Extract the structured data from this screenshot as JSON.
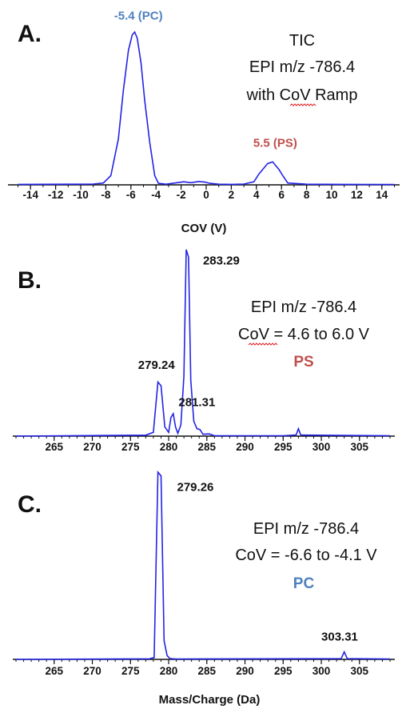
{
  "colors": {
    "trace": "#2323e6",
    "pc": "#4f81bd",
    "ps": "#c0504d",
    "axis": "#111111",
    "squiggle": "#e02020"
  },
  "chart_data": [
    {
      "panel": "A.",
      "type": "line",
      "xlabel": "COV (V)",
      "xlim": [
        -15,
        15
      ],
      "xticks": [
        "-14",
        "-12",
        "-10",
        "-8",
        "-6",
        "-4",
        "-2",
        "0",
        "2",
        "4",
        "6",
        "8",
        "10",
        "12",
        "14"
      ],
      "ylim": [
        0,
        1
      ],
      "info_lines": [
        "TIC",
        "EPI m/z -786.4",
        "with CoV Ramp"
      ],
      "series": [
        {
          "x": [
            -15,
            -11,
            -9,
            -8.2,
            -7.6,
            -7.0,
            -6.6,
            -6.2,
            -5.9,
            -5.7,
            -5.5,
            -5.2,
            -4.9,
            -4.5,
            -4.1,
            -3.8,
            -3.2,
            -2.5,
            -1.8,
            -1.2,
            -0.6,
            -0.1,
            0.3,
            1,
            2,
            3,
            3.8,
            4.2,
            4.6,
            4.9,
            5.1,
            5.3,
            5.5,
            5.8,
            6.1,
            6.5,
            8,
            11,
            15
          ],
          "y": [
            0.003,
            0.004,
            0.005,
            0.012,
            0.06,
            0.3,
            0.62,
            0.88,
            0.98,
            1.0,
            0.96,
            0.8,
            0.55,
            0.28,
            0.06,
            0.01,
            0.004,
            0.012,
            0.02,
            0.014,
            0.022,
            0.018,
            0.01,
            0.004,
            0.003,
            0.005,
            0.02,
            0.07,
            0.11,
            0.14,
            0.145,
            0.15,
            0.13,
            0.1,
            0.06,
            0.012,
            0.004,
            0.003,
            0.002
          ]
        }
      ],
      "annotations": [
        {
          "text": "-5.4 (PC)",
          "x": -5.4,
          "y": 1.08,
          "color": "pc"
        },
        {
          "text": "5.5 (PS)",
          "x": 5.5,
          "y": 0.25,
          "color": "ps"
        }
      ]
    },
    {
      "panel": "B.",
      "type": "line",
      "xlabel": "",
      "xlim": [
        260,
        309
      ],
      "xticks": [
        "265",
        "270",
        "275",
        "280",
        "285",
        "290",
        "295",
        "300",
        "305"
      ],
      "ylim": [
        0,
        1
      ],
      "info_lines": [
        "EPI m/z -786.4",
        "CoV = 4.6 to 6.0 V"
      ],
      "info_tag": "PS",
      "series": [
        {
          "x": [
            260,
            277.0,
            278.0,
            278.6,
            279.0,
            279.5,
            280.0,
            280.3,
            280.6,
            280.9,
            281.2,
            281.6,
            282.0,
            282.3,
            282.6,
            282.9,
            283.3,
            283.7,
            284.1,
            284.5,
            285.3,
            286,
            295,
            296.7,
            297.0,
            297.3,
            309
          ],
          "y": [
            0,
            0.005,
            0.02,
            0.29,
            0.27,
            0.05,
            0.02,
            0.1,
            0.12,
            0.05,
            0.015,
            0.06,
            0.32,
            1.0,
            0.96,
            0.3,
            0.08,
            0.04,
            0.035,
            0.01,
            0.012,
            0.002,
            0.002,
            0.006,
            0.04,
            0.006,
            0.002
          ]
        }
      ],
      "annotations": [
        {
          "text": "279.24",
          "x": 278.4,
          "y": 0.36,
          "color": "axis"
        },
        {
          "text": "281.31",
          "x": 283.7,
          "y": 0.16,
          "color": "axis"
        },
        {
          "text": "283.29",
          "x": 286.9,
          "y": 0.92,
          "color": "axis"
        }
      ]
    },
    {
      "panel": "C.",
      "type": "line",
      "xlabel": "Mass/Charge (Da)",
      "xlim": [
        260,
        309
      ],
      "xticks": [
        "265",
        "270",
        "275",
        "280",
        "285",
        "290",
        "295",
        "300",
        "305"
      ],
      "ylim": [
        0,
        1
      ],
      "info_lines": [
        "EPI m/z -786.4",
        "CoV = -6.6 to -4.1 V"
      ],
      "info_tag": "PC",
      "series": [
        {
          "x": [
            260,
            277.5,
            278.1,
            278.6,
            279.0,
            279.4,
            279.8,
            280.2,
            281,
            302.6,
            303.0,
            303.4,
            309
          ],
          "y": [
            0,
            0.003,
            0.01,
            1.0,
            0.98,
            0.1,
            0.02,
            0.004,
            0.002,
            0.004,
            0.04,
            0.004,
            0.002
          ]
        }
      ],
      "annotations": [
        {
          "text": "279.26",
          "x": 283.5,
          "y": 0.9,
          "color": "axis"
        },
        {
          "text": "303.31",
          "x": 302.4,
          "y": 0.1,
          "color": "axis"
        }
      ]
    }
  ]
}
